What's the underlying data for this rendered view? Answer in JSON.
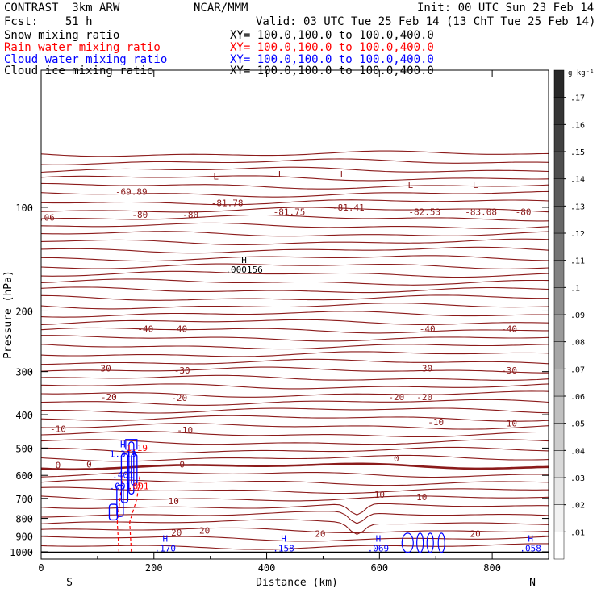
{
  "header": {
    "model": "CONTRAST  3km ARW",
    "center": "NCAR/MMM",
    "init": "Init: 00 UTC Sun 23 Feb 14",
    "fcst": "Fcst:    51 h",
    "valid": "Valid: 03 UTC Tue 25 Feb 14 (13 ChT Tue 25 Feb 14)"
  },
  "fields": [
    {
      "name": "Snow mixing ratio",
      "xy": "XY= 100.0,100.0 to 100.0,400.0",
      "color": "#000000"
    },
    {
      "name": "Rain water mixing ratio",
      "xy": "XY= 100.0,100.0 to 100.0,400.0",
      "color": "#ff0000"
    },
    {
      "name": "Cloud water mixing ratio",
      "xy": "XY= 100.0,100.0 to 100.0,400.0",
      "color": "#0000ff"
    },
    {
      "name": "Cloud ice mixing ratio",
      "xy": "XY= 100.0,100.0 to 100.0,400.0",
      "color": "#000000"
    }
  ],
  "chart_data": {
    "type": "contour",
    "ylabel": "Pressure (hPa)",
    "xlabel": "Distance (km)",
    "xlim": [
      0,
      900
    ],
    "ylim": [
      1050,
      40
    ],
    "yscale": "log",
    "x_ticks": [
      0,
      200,
      400,
      600,
      800
    ],
    "y_ticks": [
      100,
      200,
      300,
      400,
      500,
      600,
      700,
      800,
      900,
      1000
    ],
    "x_end_labels": {
      "left": "S",
      "right": "N"
    },
    "colorbar": {
      "unit": "g kg⁻¹",
      "ticks": [
        ".01",
        ".02",
        ".03",
        ".04",
        ".05",
        ".06",
        ".07",
        ".08",
        ".09",
        ".1",
        ".11",
        ".12",
        ".13",
        ".14",
        ".15",
        ".16",
        ".17"
      ]
    },
    "temperature_line_color": "#8b1a1a",
    "isotherm_labels": [
      {
        "value": "-69.89",
        "x": 160,
        "p": 90
      },
      {
        "value": "-80",
        "x": 175,
        "p": 105
      },
      {
        "value": "-80",
        "x": 265,
        "p": 105
      },
      {
        "value": "-81.78",
        "x": 330,
        "p": 97
      },
      {
        "value": "-81.75",
        "x": 440,
        "p": 103
      },
      {
        "value": "-81.41",
        "x": 545,
        "p": 100
      },
      {
        "value": "-82.53",
        "x": 680,
        "p": 103
      },
      {
        "value": "-83.08",
        "x": 780,
        "p": 103
      },
      {
        "value": "-80",
        "x": 855,
        "p": 103
      },
      {
        "value": ".06",
        "x": 10,
        "p": 107
      },
      {
        "value": "-40",
        "x": 185,
        "p": 225
      },
      {
        "value": "-40",
        "x": 245,
        "p": 225
      },
      {
        "value": "-40",
        "x": 685,
        "p": 225
      },
      {
        "value": "-40",
        "x": 830,
        "p": 225
      },
      {
        "value": "-30",
        "x": 110,
        "p": 293
      },
      {
        "value": "-30",
        "x": 250,
        "p": 297
      },
      {
        "value": "-30",
        "x": 680,
        "p": 293
      },
      {
        "value": "-30",
        "x": 830,
        "p": 297
      },
      {
        "value": "-20",
        "x": 120,
        "p": 355
      },
      {
        "value": "-20",
        "x": 245,
        "p": 357
      },
      {
        "value": "-20",
        "x": 630,
        "p": 355
      },
      {
        "value": "-20",
        "x": 680,
        "p": 355
      },
      {
        "value": "-10",
        "x": 30,
        "p": 440
      },
      {
        "value": "-10",
        "x": 255,
        "p": 443
      },
      {
        "value": "-10",
        "x": 700,
        "p": 420
      },
      {
        "value": "-10",
        "x": 830,
        "p": 423
      },
      {
        "value": "0",
        "x": 30,
        "p": 560
      },
      {
        "value": "0",
        "x": 85,
        "p": 557
      },
      {
        "value": "0",
        "x": 250,
        "p": 557
      },
      {
        "value": "0",
        "x": 630,
        "p": 535
      },
      {
        "value": "10",
        "x": 235,
        "p": 712
      },
      {
        "value": "10",
        "x": 600,
        "p": 683
      },
      {
        "value": "10",
        "x": 675,
        "p": 693
      },
      {
        "value": "20",
        "x": 240,
        "p": 878
      },
      {
        "value": "20",
        "x": 290,
        "p": 868
      },
      {
        "value": "20",
        "x": 495,
        "p": 885
      },
      {
        "value": "20",
        "x": 770,
        "p": 885
      }
    ],
    "extrema_labels": [
      {
        "marker": "L",
        "x": 310,
        "p": 83,
        "value": ""
      },
      {
        "marker": "L",
        "x": 425,
        "p": 82,
        "value": ""
      },
      {
        "marker": "L",
        "x": 535,
        "p": 82,
        "value": ""
      },
      {
        "marker": "L",
        "x": 655,
        "p": 88,
        "value": ""
      },
      {
        "marker": "L",
        "x": 770,
        "p": 88,
        "value": ""
      },
      {
        "marker": "H",
        "x": 360,
        "p": 145,
        "value": ".000156",
        "color": "#000000"
      },
      {
        "marker": "H",
        "x": 145,
        "p": 497,
        "value": "1.319",
        "color": "#0000ff"
      },
      {
        "marker": "H",
        "x": 220,
        "p": 935,
        "value": ".170",
        "color": "#0000ff"
      },
      {
        "marker": "H",
        "x": 430,
        "p": 935,
        "value": ".158",
        "color": "#0000ff"
      },
      {
        "marker": "H",
        "x": 598,
        "p": 935,
        "value": ".069",
        "color": "#0000ff"
      },
      {
        "marker": "H",
        "x": 868,
        "p": 935,
        "value": ".058",
        "color": "#0000ff"
      }
    ],
    "cloud_labels": [
      {
        "value": ".401",
        "x": 145,
        "p": 610,
        "color": "#0000ff"
      },
      {
        "value": ".001",
        "x": 140,
        "p": 658,
        "color": "#0000ff"
      },
      {
        "value": ".001",
        "x": 172,
        "p": 658,
        "color": "#ff0000"
      },
      {
        "value": "1.19",
        "x": 170,
        "p": 510,
        "color": "#ff0000"
      }
    ]
  }
}
